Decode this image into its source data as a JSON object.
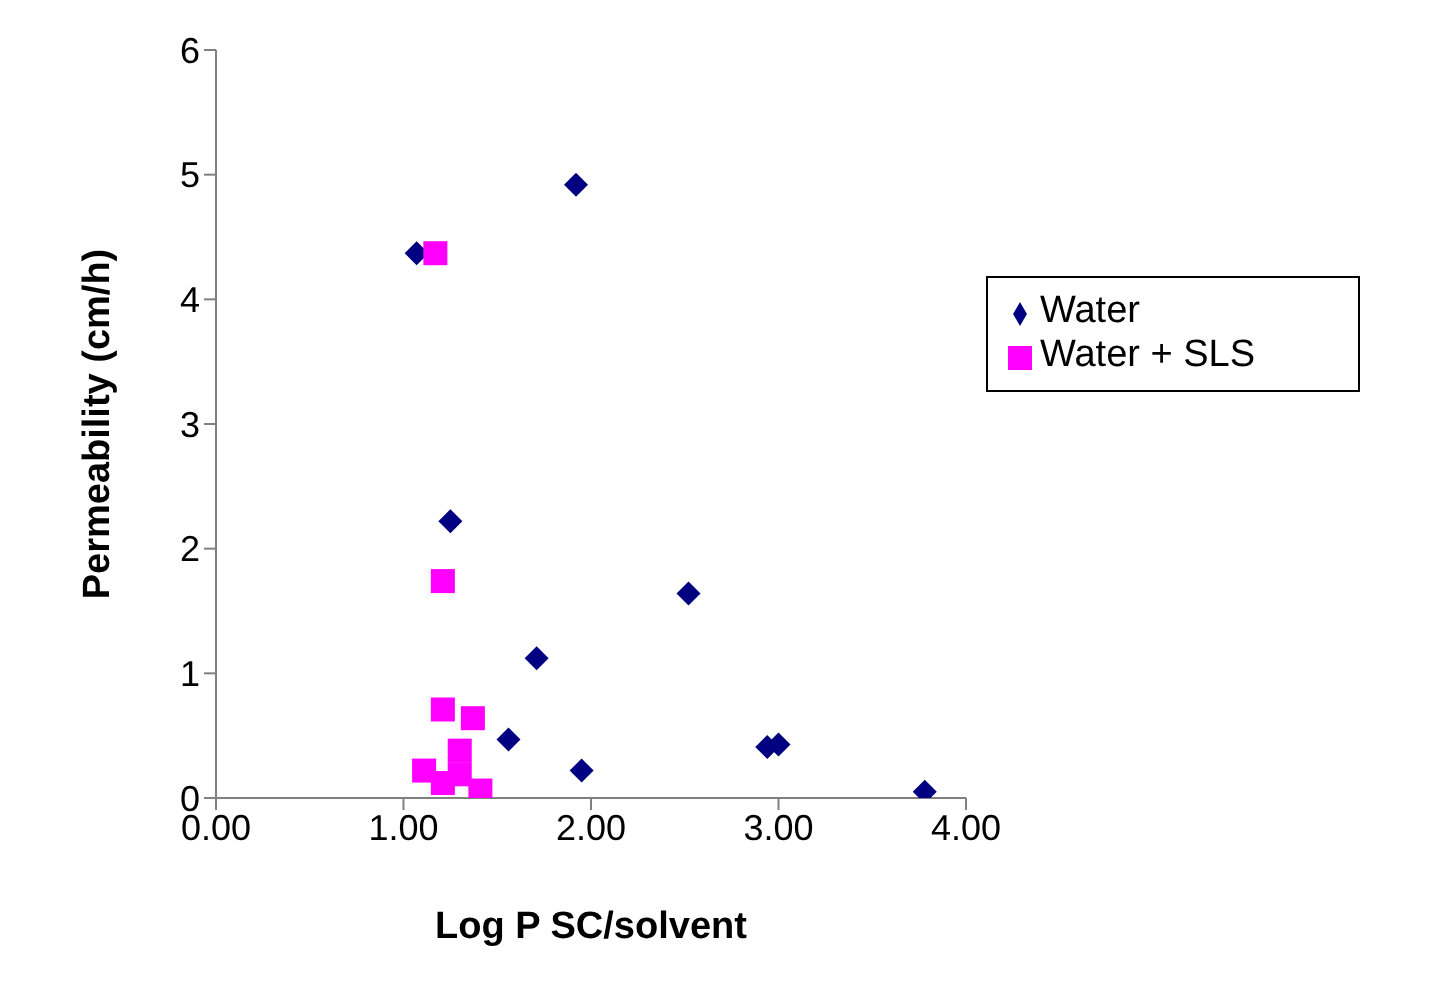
{
  "chart_data": {
    "type": "scatter",
    "xlabel": "Log P SC/solvent",
    "ylabel": "Permeability (cm/h)",
    "xlim": [
      0,
      4
    ],
    "xticks": [
      {
        "value": 0,
        "label": "0.00"
      },
      {
        "value": 1,
        "label": "1.00"
      },
      {
        "value": 2,
        "label": "2.00"
      },
      {
        "value": 3,
        "label": "3.00"
      },
      {
        "value": 4,
        "label": "4.00"
      }
    ],
    "ylim": [
      0,
      6
    ],
    "yticks": [
      0,
      1,
      2,
      3,
      4,
      5,
      6
    ],
    "grid": false,
    "legend": "top right",
    "series": [
      {
        "name": "Water",
        "color": "#000080",
        "marker": "diamond",
        "x": [
          1.07,
          1.92,
          1.25,
          1.71,
          1.56,
          1.95,
          2.52,
          2.94,
          3.0,
          3.78
        ],
        "values": [
          4.37,
          4.92,
          2.22,
          1.12,
          0.47,
          0.22,
          1.64,
          0.41,
          0.43,
          0.05
        ]
      },
      {
        "name": "Water + SLS",
        "color": "#ff00ff",
        "marker": "square",
        "x": [
          1.17,
          1.21,
          1.21,
          1.37,
          1.11,
          1.21,
          1.3,
          1.3,
          1.41
        ],
        "values": [
          4.37,
          1.74,
          0.71,
          0.64,
          0.22,
          0.12,
          0.38,
          0.19,
          0.06
        ]
      }
    ]
  }
}
